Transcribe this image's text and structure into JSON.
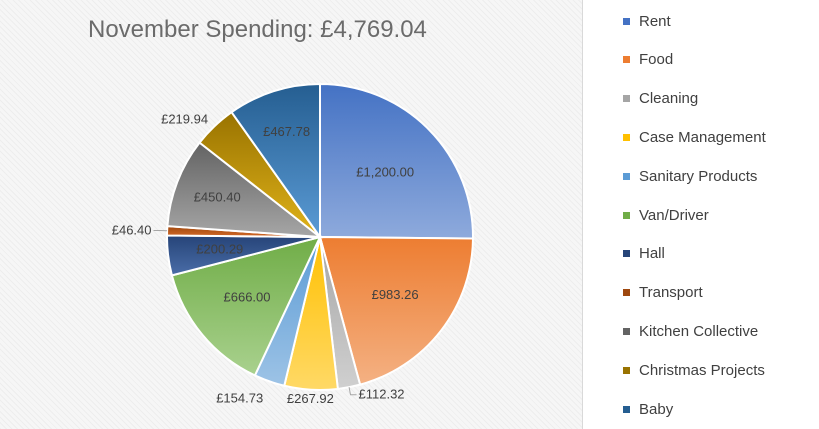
{
  "chart_data": {
    "type": "pie",
    "title": "November Spending: £4,769.04",
    "legend_position": "right",
    "series": [
      {
        "slices": [
          {
            "label": "Rent",
            "value": 1200.0,
            "data_label": "£1,200.00",
            "color": "#4472c4",
            "color_light": "#8eaadc"
          },
          {
            "label": "Food",
            "value": 983.26,
            "data_label": "£983.26",
            "color": "#ed7d31",
            "color_light": "#f4b183"
          },
          {
            "label": "Cleaning",
            "value": 112.32,
            "data_label": "£112.32",
            "color": "#a5a5a5",
            "color_light": "#d0d0d0"
          },
          {
            "label": "Case Management",
            "value": 267.92,
            "data_label": "£267.92",
            "color": "#ffc000",
            "color_light": "#ffd966"
          },
          {
            "label": "Sanitary Products",
            "value": 154.73,
            "data_label": "£154.73",
            "color": "#5b9bd5",
            "color_light": "#9dc3e6"
          },
          {
            "label": "Van/Driver",
            "value": 666.0,
            "data_label": "£666.00",
            "color": "#70ad47",
            "color_light": "#a9d18e"
          },
          {
            "label": "Hall",
            "value": 200.29,
            "data_label": "£200.29",
            "color": "#264478",
            "color_light": "#4a6da8"
          },
          {
            "label": "Transport",
            "value": 46.4,
            "data_label": "£46.40",
            "color": "#9e480e",
            "color_light": "#d46a28"
          },
          {
            "label": "Kitchen Collective",
            "value": 450.4,
            "data_label": "£450.40",
            "color": "#636363",
            "color_light": "#a6a6a6"
          },
          {
            "label": "Christmas Projects",
            "value": 219.94,
            "data_label": "£219.94",
            "color": "#997300",
            "color_light": "#e0b31a"
          },
          {
            "label": "Baby",
            "value": 467.78,
            "data_label": "£467.78",
            "color": "#255e91",
            "color_light": "#5b9bd5"
          }
        ]
      }
    ]
  }
}
